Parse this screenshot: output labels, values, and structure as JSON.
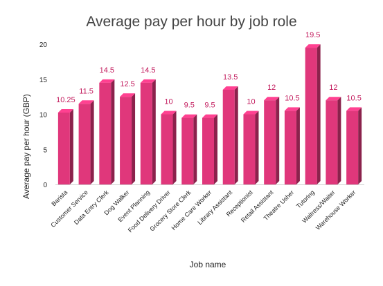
{
  "chart_data": {
    "type": "bar",
    "title": "Average pay per hour by job role",
    "xlabel": "Job name",
    "ylabel": "Average pay per hour (GBP)",
    "ylim": [
      0,
      20
    ],
    "yticks": [
      0,
      5,
      10,
      15,
      20
    ],
    "grid": false,
    "legend": "none",
    "bar_color": "#e0377b",
    "label_color": "#c2185b",
    "categories": [
      "Barista",
      "Customer Service",
      "Data Entry Clerk",
      "Dog Walker",
      "Event Planning",
      "Food Delivery Driver",
      "Grocery Store Clerk",
      "Home Care Worker",
      "Library Assistant",
      "Receptionist",
      "Retail Assistant",
      "Theatre Usher",
      "Tutoring",
      "Waitress/Waiter",
      "Warehouse Worker"
    ],
    "values": [
      10.25,
      11.5,
      14.5,
      12.5,
      14.5,
      10,
      9.5,
      9.5,
      13.5,
      10,
      12,
      10.5,
      19.5,
      12,
      10.5
    ],
    "value_labels": [
      "10.25",
      "11.5",
      "14.5",
      "12.5",
      "14.5",
      "10",
      "9.5",
      "9.5",
      "13.5",
      "10",
      "12",
      "10.5",
      "19.5",
      "12",
      "10.5"
    ]
  }
}
